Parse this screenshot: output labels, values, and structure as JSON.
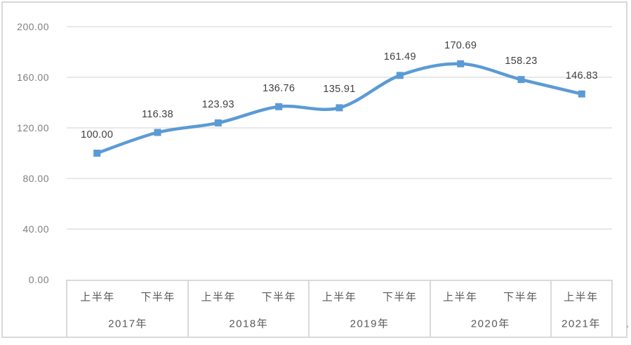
{
  "chart_data": {
    "type": "line",
    "smooth": true,
    "marker": "square",
    "legend": "none",
    "grid": true,
    "values": [
      100.0,
      116.38,
      123.93,
      136.76,
      135.91,
      161.49,
      170.69,
      158.23,
      146.83
    ],
    "data_labels": [
      "100.00",
      "116.38",
      "123.93",
      "136.76",
      "135.91",
      "161.49",
      "170.69",
      "158.23",
      "146.83"
    ],
    "categories": [
      "2017年上半年",
      "2017年下半年",
      "2018年上半年",
      "2018年下半年",
      "2019年上半年",
      "2019年下半年",
      "2020年上半年",
      "2020年下半年",
      "2021年上半年"
    ],
    "x_groups": [
      {
        "year": "2017年",
        "halves": [
          "上半年",
          "下半年"
        ]
      },
      {
        "year": "2018年",
        "halves": [
          "上半年",
          "下半年"
        ]
      },
      {
        "year": "2019年",
        "halves": [
          "上半年",
          "下半年"
        ]
      },
      {
        "year": "2020年",
        "halves": [
          "上半年",
          "下半年"
        ]
      },
      {
        "year": "2021年",
        "halves": [
          "上半年"
        ]
      }
    ],
    "y_ticks": [
      "200.00",
      "160.00",
      "120.00",
      "80.00",
      "40.00",
      "0.00"
    ],
    "y_tick_values": [
      200,
      160,
      120,
      80,
      40,
      0
    ],
    "ylim": [
      0,
      200
    ],
    "colors": {
      "line": "#5B9BD5",
      "marker": "#5B9BD5",
      "gridline": "#D9D9D9",
      "border": "#D9D9D9",
      "y_tick_text": "#7F7F7F",
      "category_text": "#595959",
      "data_label_text": "#404040"
    }
  },
  "misc": {
    "stray_mark": ","
  }
}
